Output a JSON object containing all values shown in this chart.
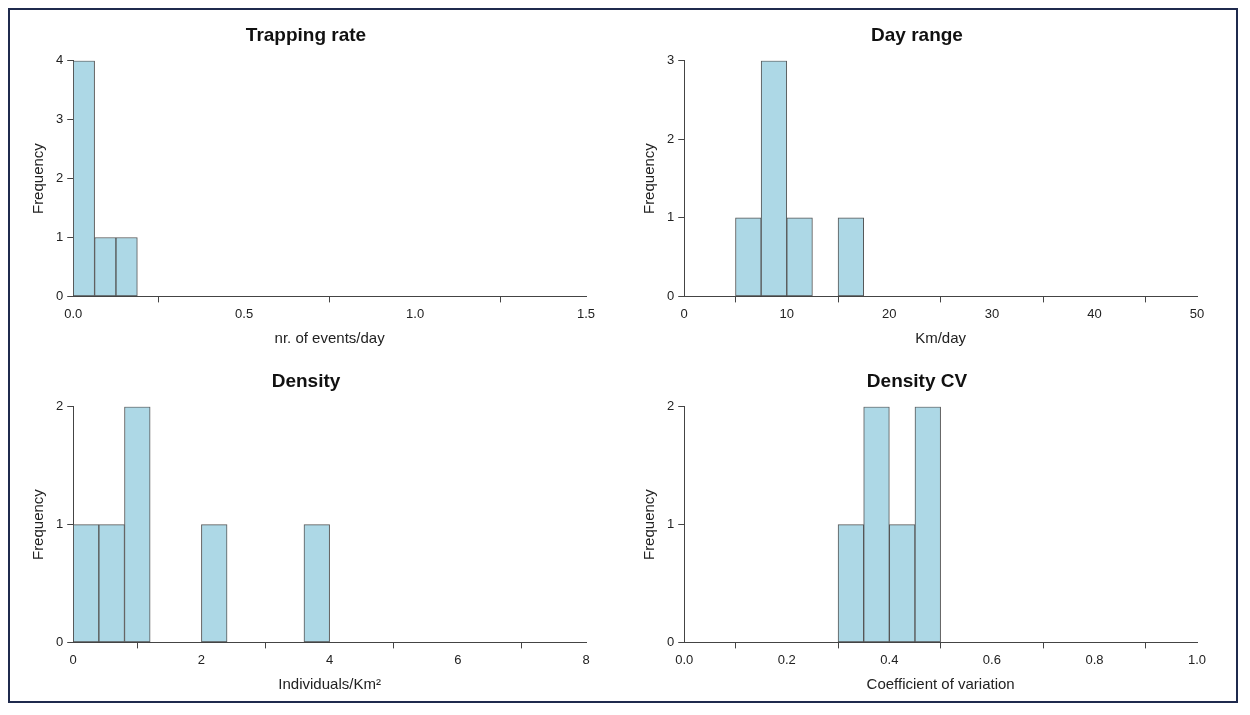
{
  "chart_data": [
    {
      "type": "histogram",
      "title": "Trapping rate",
      "xlabel": "nr. of events/day",
      "ylabel": "Frequency",
      "color": "#add8e6",
      "bins": [
        0,
        0.0625,
        0.125,
        0.1875,
        0.25,
        0.3125,
        0.375,
        0.4375,
        0.5,
        0.5625,
        0.625,
        0.6875,
        0.75,
        0.8125,
        0.875,
        0.9375,
        1,
        1.0625,
        1.125,
        1.1875,
        1.25,
        1.3125,
        1.375,
        1.4375,
        1.5
      ],
      "values": [
        4,
        1,
        1,
        0,
        0,
        0,
        0,
        0,
        0,
        0,
        0,
        0,
        0,
        0,
        0,
        0,
        0,
        0,
        0,
        0,
        0,
        0,
        0,
        0
      ],
      "xlim": [
        0,
        1.5
      ],
      "xticks": [
        {
          "value": 0,
          "label": "0.0"
        },
        0.5,
        {
          "value": 1,
          "label": "1.0"
        },
        1.5
      ],
      "ylim": [
        0,
        4
      ],
      "yticks": [
        0,
        1,
        2,
        3,
        4
      ]
    },
    {
      "type": "histogram",
      "title": "Day range",
      "xlabel": "Km/day",
      "ylabel": "Frequency",
      "color": "#add8e6",
      "bins": [
        0,
        2.5,
        5,
        7.5,
        10,
        12.5,
        15,
        17.5,
        20,
        22.5,
        25,
        27.5,
        30,
        32.5,
        35,
        37.5,
        40,
        42.5,
        45,
        47.5,
        50
      ],
      "values": [
        0,
        0,
        1,
        3,
        1,
        0,
        1,
        0,
        0,
        0,
        0,
        0,
        0,
        0,
        0,
        0,
        0,
        0,
        0,
        0
      ],
      "xlim": [
        0,
        50
      ],
      "xticks": [
        0,
        10,
        20,
        30,
        40,
        50
      ],
      "ylim": [
        0,
        3
      ],
      "yticks": [
        0,
        1,
        2,
        3
      ]
    },
    {
      "type": "histogram",
      "title": "Density",
      "xlabel": "Individuals/Km²",
      "ylabel": "Frequency",
      "color": "#add8e6",
      "bins": [
        0,
        0.4,
        0.8,
        1.2,
        1.6,
        2,
        2.4,
        2.8,
        3.2,
        3.6,
        4,
        4.4,
        4.8,
        5.2,
        5.6,
        6,
        6.4,
        6.8,
        7.2,
        7.6,
        8
      ],
      "values": [
        1,
        1,
        2,
        0,
        0,
        1,
        0,
        0,
        0,
        1,
        0,
        0,
        0,
        0,
        0,
        0,
        0,
        0,
        0,
        0
      ],
      "xlim": [
        0,
        8
      ],
      "xticks": [
        0,
        2,
        4,
        6,
        8
      ],
      "ylim": [
        0,
        2
      ],
      "yticks": [
        0,
        1,
        2
      ]
    },
    {
      "type": "histogram",
      "title": "Density CV",
      "xlabel": "Coefficient of variation",
      "ylabel": "Frequency",
      "color": "#add8e6",
      "bins": [
        0,
        0.05,
        0.1,
        0.15,
        0.2,
        0.25,
        0.3,
        0.35,
        0.4,
        0.45,
        0.5,
        0.55,
        0.6,
        0.65,
        0.7,
        0.75,
        0.8,
        0.85,
        0.9,
        0.95,
        1
      ],
      "values": [
        0,
        0,
        0,
        0,
        0,
        0,
        1,
        2,
        1,
        2,
        0,
        0,
        0,
        0,
        0,
        0,
        0,
        0,
        0,
        0
      ],
      "xlim": [
        0,
        1
      ],
      "xticks": [
        {
          "value": 0,
          "label": "0.0"
        },
        {
          "value": 0.2,
          "label": "0.2"
        },
        {
          "value": 0.4,
          "label": "0.4"
        },
        {
          "value": 0.6,
          "label": "0.6"
        },
        {
          "value": 0.8,
          "label": "0.8"
        },
        {
          "value": 1,
          "label": "1.0"
        }
      ],
      "ylim": [
        0,
        2
      ],
      "yticks": [
        0,
        1,
        2
      ]
    }
  ]
}
